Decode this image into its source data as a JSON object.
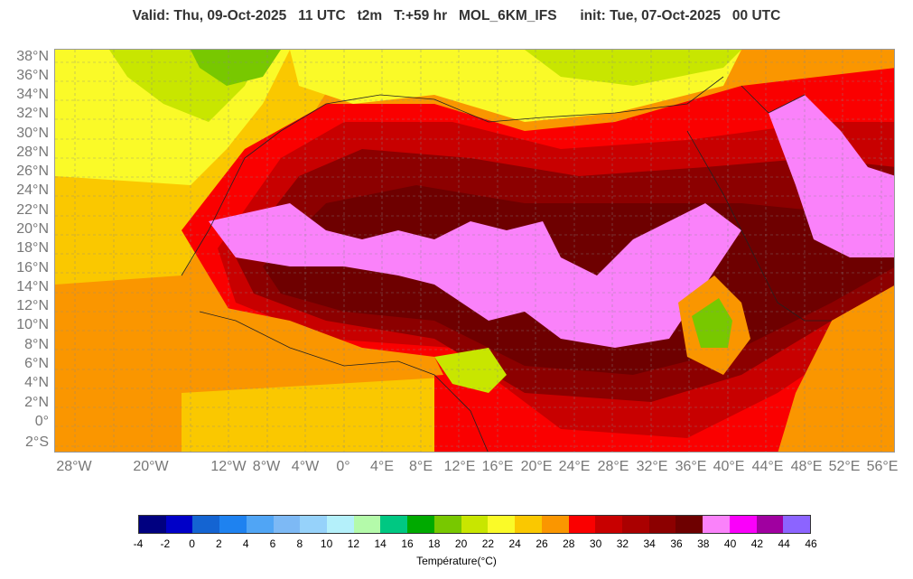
{
  "title": "Valid: Thu, 09-Oct-2025   11 UTC   t2m   T:+59 hr   MOL_6KM_IFS      init: Tue, 07-Oct-2025   00 UTC",
  "lat_labels": [
    "38°N",
    "36°N",
    "34°N",
    "32°N",
    "30°N",
    "28°N",
    "26°N",
    "24°N",
    "22°N",
    "20°N",
    "18°N",
    "16°N",
    "14°N",
    "12°N",
    "10°N",
    "8°N",
    "6°N",
    "4°N",
    "2°N",
    "0°",
    "2°S"
  ],
  "lon_labels": [
    "28°W",
    "20°W",
    "12°W",
    "8°W",
    "4°W",
    "0°",
    "4°E",
    "8°E",
    "12°E",
    "16°E",
    "20°E",
    "24°E",
    "28°E",
    "32°E",
    "36°E",
    "40°E",
    "44°E",
    "48°E",
    "52°E",
    "56°E"
  ],
  "legend": {
    "title": "Température(°C)",
    "ticks": [
      "-4",
      "-2",
      "0",
      "2",
      "4",
      "6",
      "8",
      "10",
      "12",
      "14",
      "16",
      "18",
      "20",
      "22",
      "24",
      "26",
      "28",
      "30",
      "32",
      "34",
      "36",
      "38",
      "40",
      "42",
      "44",
      "46"
    ],
    "colors": [
      "#000080",
      "#0000c8",
      "#1464d2",
      "#1e82f0",
      "#50a5f5",
      "#7db9f5",
      "#96d2fa",
      "#b4f0fa",
      "#b4faaa",
      "#00c882",
      "#00aa00",
      "#78c800",
      "#c8e600",
      "#fafa28",
      "#fac800",
      "#fa9600",
      "#fa0000",
      "#c80000",
      "#aa0000",
      "#8c0000",
      "#6e0000",
      "#fa82fa",
      "#fa00fa",
      "#a000a0",
      "#8c64ff"
    ]
  }
}
